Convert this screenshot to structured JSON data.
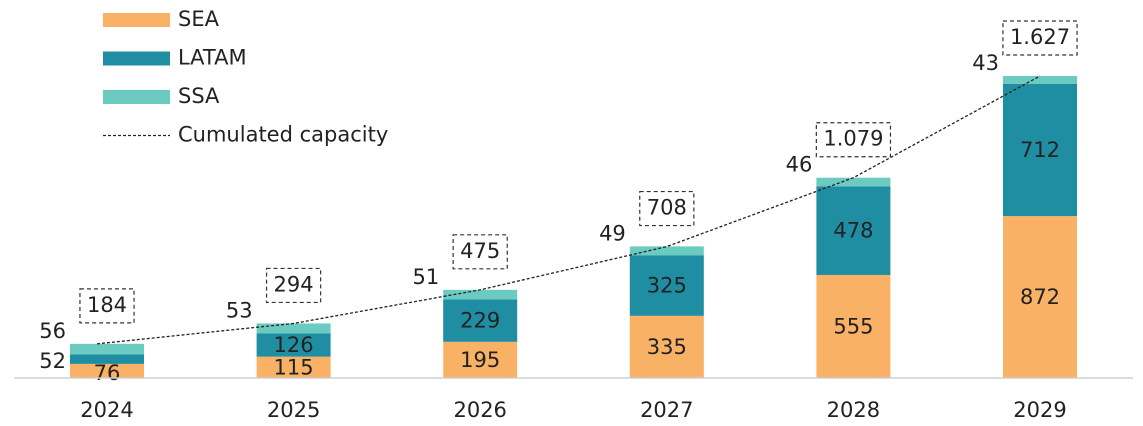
{
  "chart_data": {
    "type": "bar",
    "stacked": true,
    "categories": [
      "2024",
      "2025",
      "2026",
      "2027",
      "2028",
      "2029"
    ],
    "series": [
      {
        "name": "SEA",
        "color": "#f8b165",
        "values": [
          76,
          115,
          195,
          335,
          555,
          872
        ]
      },
      {
        "name": "LATAM",
        "color": "#1f8ea3",
        "values": [
          52,
          126,
          229,
          325,
          478,
          712
        ]
      },
      {
        "name": "SSA",
        "color": "#6ccbc1",
        "values": [
          56,
          53,
          51,
          49,
          46,
          43
        ]
      },
      {
        "name": "Cumulated capacity",
        "type": "line",
        "color": "#222222",
        "values": [
          184,
          294,
          475,
          708,
          1079,
          1627
        ],
        "value_labels": [
          "184",
          "294",
          "475",
          "708",
          "1.079",
          "1.627"
        ]
      }
    ]
  }
}
